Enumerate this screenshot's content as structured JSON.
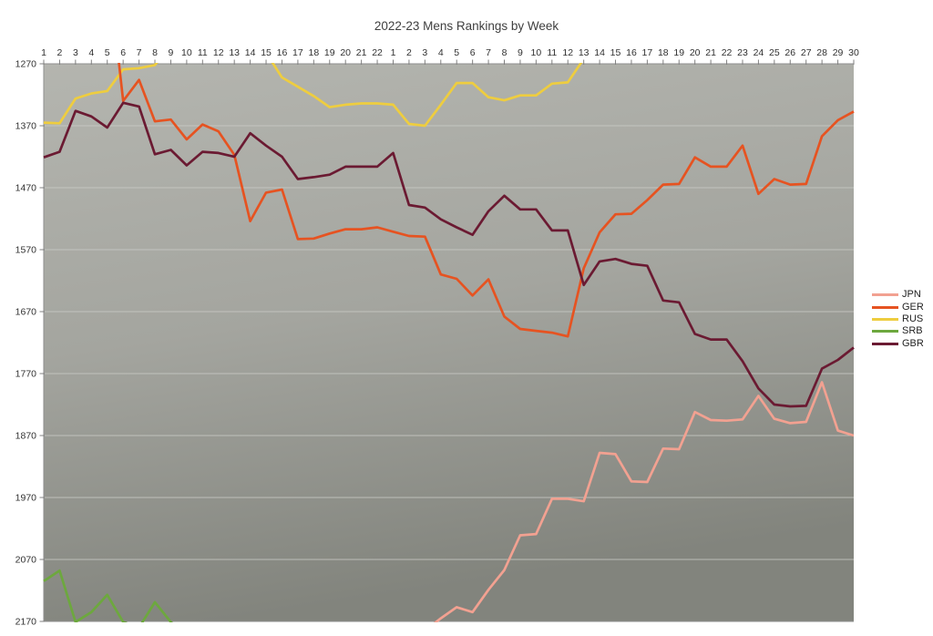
{
  "chart_data": {
    "type": "line",
    "title": "2022-23 Mens Rankings by Week",
    "xlabel": "",
    "ylabel": "",
    "x_axis": {
      "position": "top",
      "labels": [
        "1",
        "2",
        "3",
        "4",
        "5",
        "6",
        "7",
        "8",
        "9",
        "10",
        "11",
        "12",
        "13",
        "14",
        "15",
        "16",
        "17",
        "18",
        "19",
        "20",
        "21",
        "22",
        "1",
        "2",
        "3",
        "4",
        "5",
        "6",
        "7",
        "8",
        "9",
        "10",
        "11",
        "12",
        "13",
        "14",
        "15",
        "16",
        "17",
        "18",
        "19",
        "20",
        "21",
        "22",
        "23",
        "24",
        "25",
        "26",
        "27",
        "28",
        "29",
        "30"
      ]
    },
    "y_axis": {
      "min": 1270,
      "max": 2170,
      "direction": "increases-downward",
      "ticks": [
        1270,
        1370,
        1470,
        1570,
        1670,
        1770,
        1870,
        1970,
        2070,
        2170
      ]
    },
    "grid": "horizontal",
    "legend_position": "right",
    "plot_bg_gradient": {
      "top": "#b4b5af",
      "mid": "#a4a59f",
      "bottom": "#82847d"
    },
    "axis_color": "#8f8f8f",
    "gridline_color": "#c9cac5",
    "series": [
      {
        "name": "JPN",
        "color": "#F2A191",
        "values": [
          null,
          null,
          null,
          null,
          null,
          null,
          null,
          null,
          null,
          null,
          null,
          null,
          null,
          null,
          null,
          null,
          null,
          null,
          null,
          null,
          null,
          null,
          null,
          null,
          2185,
          2165,
          2147,
          2155,
          2119,
          2087,
          2031,
          2029,
          1972,
          1972,
          1976,
          1898,
          1900,
          1944,
          1945,
          1891,
          1892,
          1832,
          1845,
          1846,
          1844,
          1806,
          1843,
          1850,
          1848,
          1784,
          1862,
          1870
        ]
      },
      {
        "name": "GER",
        "color": "#E65321",
        "values": [
          null,
          null,
          null,
          null,
          1100,
          1330,
          1296,
          1363,
          1360,
          1392,
          1368,
          1379,
          1417,
          1524,
          1478,
          1473,
          1553,
          1552,
          1544,
          1537,
          1537,
          1534,
          1541,
          1548,
          1549,
          1610,
          1617,
          1644,
          1618,
          1678,
          1698,
          1701,
          1704,
          1710,
          1600,
          1542,
          1513,
          1512,
          1490,
          1465,
          1464,
          1421,
          1436,
          1436,
          1402,
          1480,
          1456,
          1465,
          1464,
          1387,
          1361,
          1347
        ]
      },
      {
        "name": "RUS",
        "color": "#EECD3F",
        "values": [
          1365,
          1366,
          1326,
          1318,
          1314,
          1279,
          1277,
          1272,
          1240,
          1235,
          1235,
          1235,
          1235,
          1235,
          1252,
          1292,
          1307,
          1322,
          1340,
          1336,
          1334,
          1334,
          1336,
          1367,
          1370,
          1336,
          1301,
          1301,
          1324,
          1329,
          1321,
          1321,
          1302,
          1300,
          1262,
          null,
          null,
          null,
          null,
          null,
          null,
          null,
          null,
          null,
          null,
          null,
          null,
          null,
          null,
          null,
          null,
          null
        ]
      },
      {
        "name": "SRB",
        "color": "#6DA83E",
        "values": [
          2105,
          2088,
          2171,
          2155,
          2127,
          2171,
          2180,
          2139,
          2171,
          2195,
          null,
          null,
          null,
          null,
          null,
          null,
          null,
          null,
          null,
          null,
          null,
          null,
          null,
          null,
          null,
          null,
          null,
          null,
          null,
          null,
          null,
          null,
          null,
          null,
          null,
          null,
          null,
          null,
          null,
          null,
          null,
          null,
          null,
          null,
          null,
          null,
          null,
          null,
          null,
          null,
          null,
          null
        ]
      },
      {
        "name": "GBR",
        "color": "#6B1A32",
        "values": [
          1421,
          1412,
          1346,
          1355,
          1373,
          1333,
          1339,
          1416,
          1409,
          1434,
          1412,
          1414,
          1420,
          1382,
          1402,
          1420,
          1456,
          1453,
          1449,
          1436,
          1436,
          1436,
          1414,
          1498,
          1502,
          1521,
          1534,
          1546,
          1508,
          1483,
          1505,
          1505,
          1539,
          1539,
          1627,
          1589,
          1585,
          1593,
          1596,
          1652,
          1655,
          1706,
          1715,
          1715,
          1750,
          1794,
          1820,
          1823,
          1822,
          1762,
          1748,
          1728
        ]
      }
    ]
  }
}
